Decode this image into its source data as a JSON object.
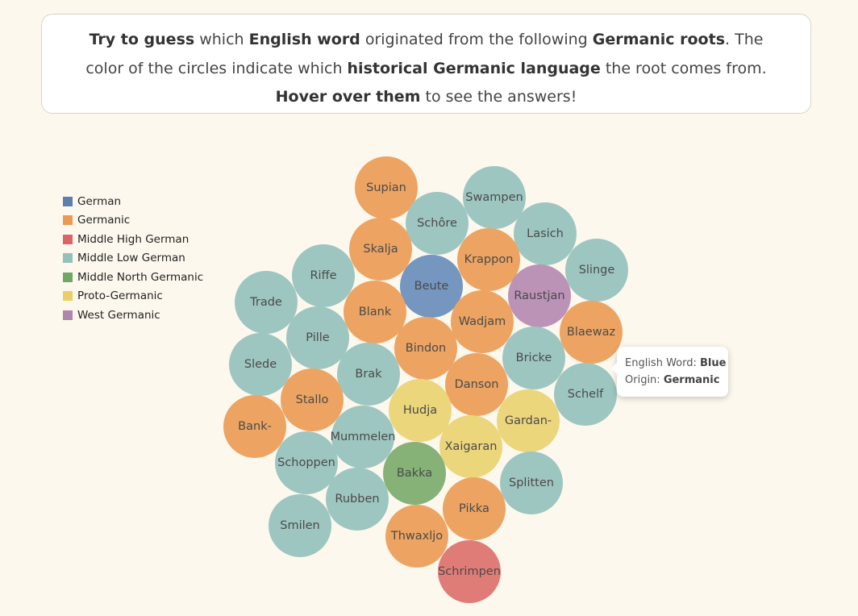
{
  "intro": {
    "p1": "Try to guess",
    "p2": " which ",
    "p3": "English word",
    "p4": " originated from the following ",
    "p5": "Germanic roots",
    "p6": ". The color of the circles indicate which ",
    "p7": "historical Germanic language",
    "p8": " the root comes from. ",
    "p9": "Hover over them",
    "p10": " to see the answers!"
  },
  "legend": [
    {
      "label": "German",
      "color": "#5b7fb0"
    },
    {
      "label": "Germanic",
      "color": "#ea9a52"
    },
    {
      "label": "Middle High German",
      "color": "#dd6464"
    },
    {
      "label": "Middle Low German",
      "color": "#93c2bb"
    },
    {
      "label": "Middle North Germanic",
      "color": "#6fa863"
    },
    {
      "label": "Proto-Germanic",
      "color": "#eacf67"
    },
    {
      "label": "West Germanic",
      "color": "#b285ad"
    }
  ],
  "colors": {
    "German": "#7596bf",
    "Germanic": "#eda462",
    "Middle High German": "#e07c78",
    "Middle Low German": "#9ec6c0",
    "Middle North Germanic": "#86b278",
    "Proto-Germanic": "#ecd67b",
    "West Germanic": "#bb93b7"
  },
  "bubbles": [
    {
      "label": "Supian",
      "lang": "Germanic"
    },
    {
      "label": "Swampen",
      "lang": "Middle Low German"
    },
    {
      "label": "Schôre",
      "lang": "Middle Low German"
    },
    {
      "label": "Lasich",
      "lang": "Middle Low German"
    },
    {
      "label": "Skalja",
      "lang": "Germanic"
    },
    {
      "label": "Krappon",
      "lang": "Germanic"
    },
    {
      "label": "Slinge",
      "lang": "Middle Low German"
    },
    {
      "label": "Riffe",
      "lang": "Middle Low German"
    },
    {
      "label": "Beute",
      "lang": "German"
    },
    {
      "label": "Raustjan",
      "lang": "West Germanic"
    },
    {
      "label": "Trade",
      "lang": "Middle Low German"
    },
    {
      "label": "Blank",
      "lang": "Germanic"
    },
    {
      "label": "Wadjam",
      "lang": "Germanic"
    },
    {
      "label": "Blaewaz",
      "lang": "Germanic"
    },
    {
      "label": "Pille",
      "lang": "Middle Low German"
    },
    {
      "label": "Bindon",
      "lang": "Germanic"
    },
    {
      "label": "Bricke",
      "lang": "Middle Low German"
    },
    {
      "label": "Slede",
      "lang": "Middle Low German"
    },
    {
      "label": "Brak",
      "lang": "Middle Low German"
    },
    {
      "label": "Danson",
      "lang": "Germanic"
    },
    {
      "label": "Schelf",
      "lang": "Middle Low German"
    },
    {
      "label": "Stallo",
      "lang": "Germanic"
    },
    {
      "label": "Hudja",
      "lang": "Proto-Germanic"
    },
    {
      "label": "Gardan-",
      "lang": "Proto-Germanic"
    },
    {
      "label": "Bank-",
      "lang": "Germanic"
    },
    {
      "label": "Mummelen",
      "lang": "Middle Low German"
    },
    {
      "label": "Xaigaran",
      "lang": "Proto-Germanic"
    },
    {
      "label": "Schoppen",
      "lang": "Middle Low German"
    },
    {
      "label": "Bakka",
      "lang": "Middle North Germanic"
    },
    {
      "label": "Splitten",
      "lang": "Middle Low German"
    },
    {
      "label": "Rubben",
      "lang": "Middle Low German"
    },
    {
      "label": "Pikka",
      "lang": "Germanic"
    },
    {
      "label": "Smilen",
      "lang": "Middle Low German"
    },
    {
      "label": "Thwaxljo",
      "lang": "Germanic"
    },
    {
      "label": "Schrimpen",
      "lang": "Middle High German"
    }
  ],
  "tooltip": {
    "word_label": "English Word:",
    "word": "Blue",
    "origin_label": "Origin:",
    "origin": "Germanic"
  }
}
